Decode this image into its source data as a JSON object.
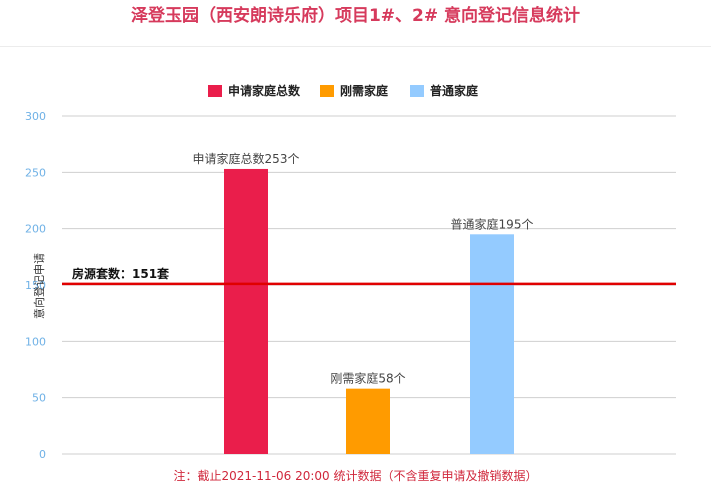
{
  "title": "泽登玉园（西安朗诗乐府）项目1#、2# 意向登记信息统计",
  "footnote": "注：截止2021-11-06 20:00 统计数据（不含重复申请及撤销数据）",
  "chart_data": {
    "type": "bar",
    "categories": [
      "申请家庭总数",
      "刚需家庭",
      "普通家庭"
    ],
    "values": [
      253,
      58,
      195
    ],
    "colors": [
      "#ea1e4b",
      "#ff9b00",
      "#94cbff"
    ],
    "data_labels": [
      "申请家庭总数253个",
      "刚需家庭58个",
      "普通家庭195个"
    ],
    "legend": [
      {
        "name": "申请家庭总数",
        "color": "#ea1e4b"
      },
      {
        "name": "刚需家庭",
        "color": "#ff9b00"
      },
      {
        "name": "普通家庭",
        "color": "#94cbff"
      }
    ],
    "legend_position": "top-center",
    "ylabel": "意向登记申请",
    "xlabel": "",
    "ylim": [
      0,
      300
    ],
    "yticks": [
      "0",
      "50",
      "100",
      "150",
      "200",
      "250",
      "300"
    ],
    "grid": true,
    "reference_line": {
      "value": 151,
      "label": "房源套数：151套",
      "color": "#e00000"
    }
  }
}
